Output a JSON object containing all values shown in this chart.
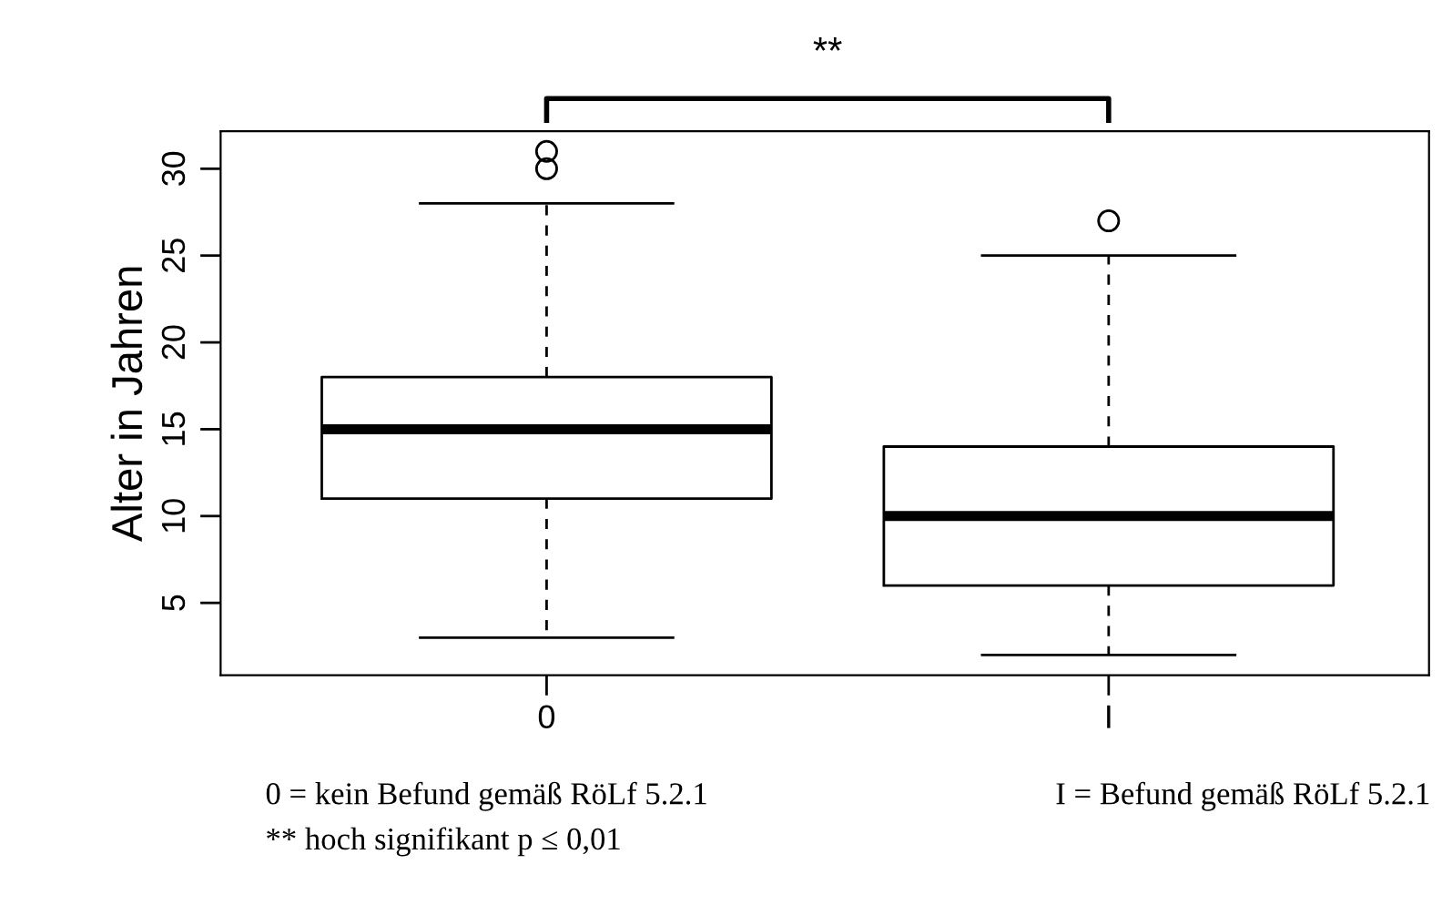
{
  "chart_data": {
    "type": "box",
    "ylabel": "Alter in Jahren",
    "categories": [
      "0",
      "I"
    ],
    "boxes": [
      {
        "low": 3,
        "q1": 11,
        "median": 15,
        "q3": 18,
        "high": 28,
        "outliers": [
          31,
          30
        ]
      },
      {
        "low": 2,
        "q1": 6,
        "median": 10,
        "q3": 14,
        "high": 25,
        "outliers": [
          27
        ]
      }
    ],
    "ylim": [
      0.84,
      32.16
    ],
    "yticks": [
      5,
      10,
      15,
      20,
      25,
      30
    ],
    "grid": false,
    "legend": false,
    "annotations": [
      "**",
      "0 = kein Befund gemäß RöLf 5.2.1",
      "I = Befund gemäß RöLf 5.2.1",
      "** hoch signifikant p ≤ 0,01"
    ]
  }
}
